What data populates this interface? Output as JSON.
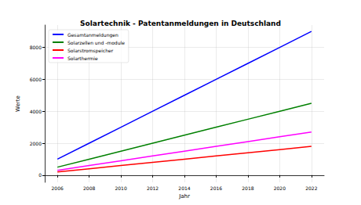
{
  "chart_data": {
    "type": "line",
    "title": "Solartechnik - Patentanmeldungen in Deutschland",
    "x_label": "Jahr",
    "y_label": "Werte",
    "x": [
      2006,
      2008,
      2010,
      2012,
      2014,
      2016,
      2018,
      2020,
      2022
    ],
    "series": [
      {
        "name": "Gesamtanmeldungen",
        "color": "#0000ff",
        "values": [
          1000,
          2000,
          3000,
          4000,
          5000,
          6000,
          7000,
          8000,
          9000
        ]
      },
      {
        "name": "Solarzellen und -module",
        "color": "#008000",
        "values": [
          500,
          1000,
          1500,
          2000,
          2500,
          3000,
          3500,
          4000,
          4500
        ]
      },
      {
        "name": "Solarstromspeicher",
        "color": "#ff0000",
        "values": [
          200,
          400,
          600,
          800,
          1000,
          1200,
          1400,
          1600,
          1800
        ]
      },
      {
        "name": "Solarthermie",
        "color": "#ff00ff",
        "values": [
          300,
          600,
          900,
          1200,
          1500,
          1800,
          2100,
          2400,
          2700
        ]
      }
    ],
    "xlim": [
      2005.2,
      2022.8
    ],
    "xticks": [
      2006,
      2008,
      2010,
      2012,
      2014,
      2016,
      2018,
      2020,
      2022
    ],
    "ylim": [
      -450,
      9400
    ],
    "yticks": [
      0,
      2000,
      4000,
      6000,
      8000
    ],
    "grid": true,
    "legend": "upper left"
  }
}
